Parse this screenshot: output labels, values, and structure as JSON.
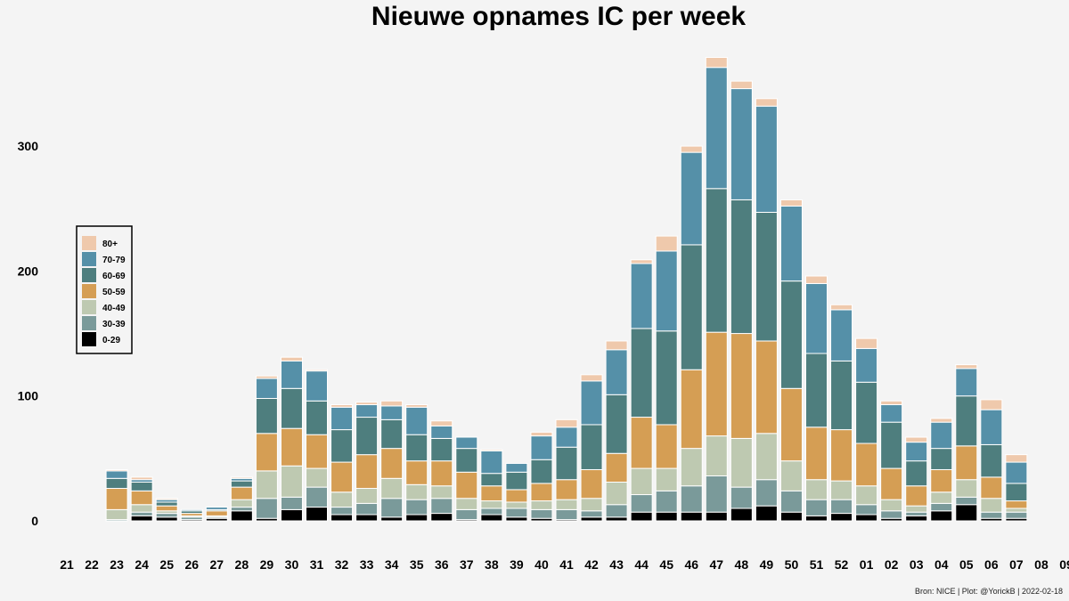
{
  "chart_data": {
    "type": "bar",
    "stacked": true,
    "title": "Nieuwe opnames IC per week",
    "caption": "Bron: NICE | Plot: @YorickB |  2022-02-18",
    "xlabel": "",
    "ylabel": "",
    "ylim": [
      0,
      370
    ],
    "y_ticks": [
      0,
      100,
      200,
      300
    ],
    "legend_position": "left",
    "categories": [
      "21",
      "22",
      "23",
      "24",
      "25",
      "26",
      "27",
      "28",
      "29",
      "30",
      "31",
      "32",
      "33",
      "34",
      "35",
      "36",
      "37",
      "38",
      "39",
      "40",
      "41",
      "42",
      "43",
      "44",
      "45",
      "46",
      "47",
      "48",
      "49",
      "50",
      "51",
      "52",
      "01",
      "02",
      "03",
      "04",
      "05",
      "06",
      "07",
      "08",
      "09"
    ],
    "series": [
      {
        "name": "0-29",
        "color": "#000000",
        "values": [
          0,
          0,
          0,
          4,
          3,
          1,
          2,
          8,
          2,
          9,
          11,
          5,
          5,
          3,
          5,
          6,
          1,
          5,
          3,
          2,
          1,
          3,
          3,
          7,
          7,
          7,
          7,
          10,
          12,
          7,
          4,
          6,
          5,
          2,
          4,
          8,
          13,
          2,
          2,
          0,
          0
        ]
      },
      {
        "name": "30-39",
        "color": "#7a9a9a",
        "values": [
          0,
          0,
          1,
          3,
          3,
          2,
          1,
          3,
          16,
          10,
          16,
          6,
          9,
          15,
          12,
          12,
          8,
          5,
          7,
          7,
          8,
          5,
          10,
          14,
          17,
          21,
          29,
          17,
          21,
          17,
          13,
          11,
          8,
          6,
          3,
          6,
          6,
          5,
          5,
          0,
          0
        ]
      },
      {
        "name": "40-49",
        "color": "#bec9b1",
        "values": [
          0,
          0,
          8,
          6,
          2,
          1,
          1,
          6,
          22,
          25,
          15,
          12,
          12,
          16,
          12,
          10,
          9,
          6,
          5,
          7,
          8,
          10,
          18,
          21,
          18,
          30,
          32,
          39,
          37,
          24,
          16,
          15,
          15,
          9,
          5,
          9,
          14,
          11,
          3,
          0,
          0
        ]
      },
      {
        "name": "50-59",
        "color": "#d59e54",
        "values": [
          0,
          0,
          17,
          11,
          4,
          2,
          4,
          10,
          30,
          30,
          27,
          24,
          27,
          24,
          19,
          20,
          21,
          12,
          10,
          14,
          16,
          23,
          23,
          41,
          35,
          63,
          83,
          84,
          74,
          58,
          42,
          41,
          34,
          25,
          16,
          18,
          27,
          17,
          6,
          0,
          0
        ]
      },
      {
        "name": "60-69",
        "color": "#4e7e7e",
        "values": [
          0,
          0,
          8,
          7,
          3,
          2,
          1,
          5,
          28,
          32,
          27,
          26,
          30,
          23,
          21,
          18,
          19,
          10,
          14,
          19,
          26,
          36,
          47,
          71,
          75,
          100,
          115,
          107,
          103,
          86,
          59,
          55,
          49,
          37,
          20,
          17,
          40,
          26,
          14,
          0,
          0
        ]
      },
      {
        "name": "70-79",
        "color": "#5590a8",
        "values": [
          0,
          0,
          6,
          2,
          2,
          1,
          2,
          2,
          16,
          22,
          24,
          18,
          10,
          11,
          22,
          10,
          9,
          18,
          7,
          19,
          16,
          35,
          36,
          52,
          64,
          74,
          97,
          89,
          85,
          60,
          56,
          41,
          27,
          14,
          15,
          21,
          22,
          28,
          17,
          0,
          0
        ]
      },
      {
        "name": "80+",
        "color": "#efc9ac",
        "values": [
          0,
          0,
          1,
          2,
          1,
          0,
          0,
          1,
          2,
          3,
          1,
          2,
          2,
          4,
          2,
          4,
          0,
          1,
          0,
          3,
          6,
          5,
          7,
          3,
          12,
          5,
          8,
          6,
          6,
          5,
          6,
          4,
          8,
          3,
          4,
          3,
          3,
          8,
          6,
          0,
          0
        ]
      }
    ]
  }
}
